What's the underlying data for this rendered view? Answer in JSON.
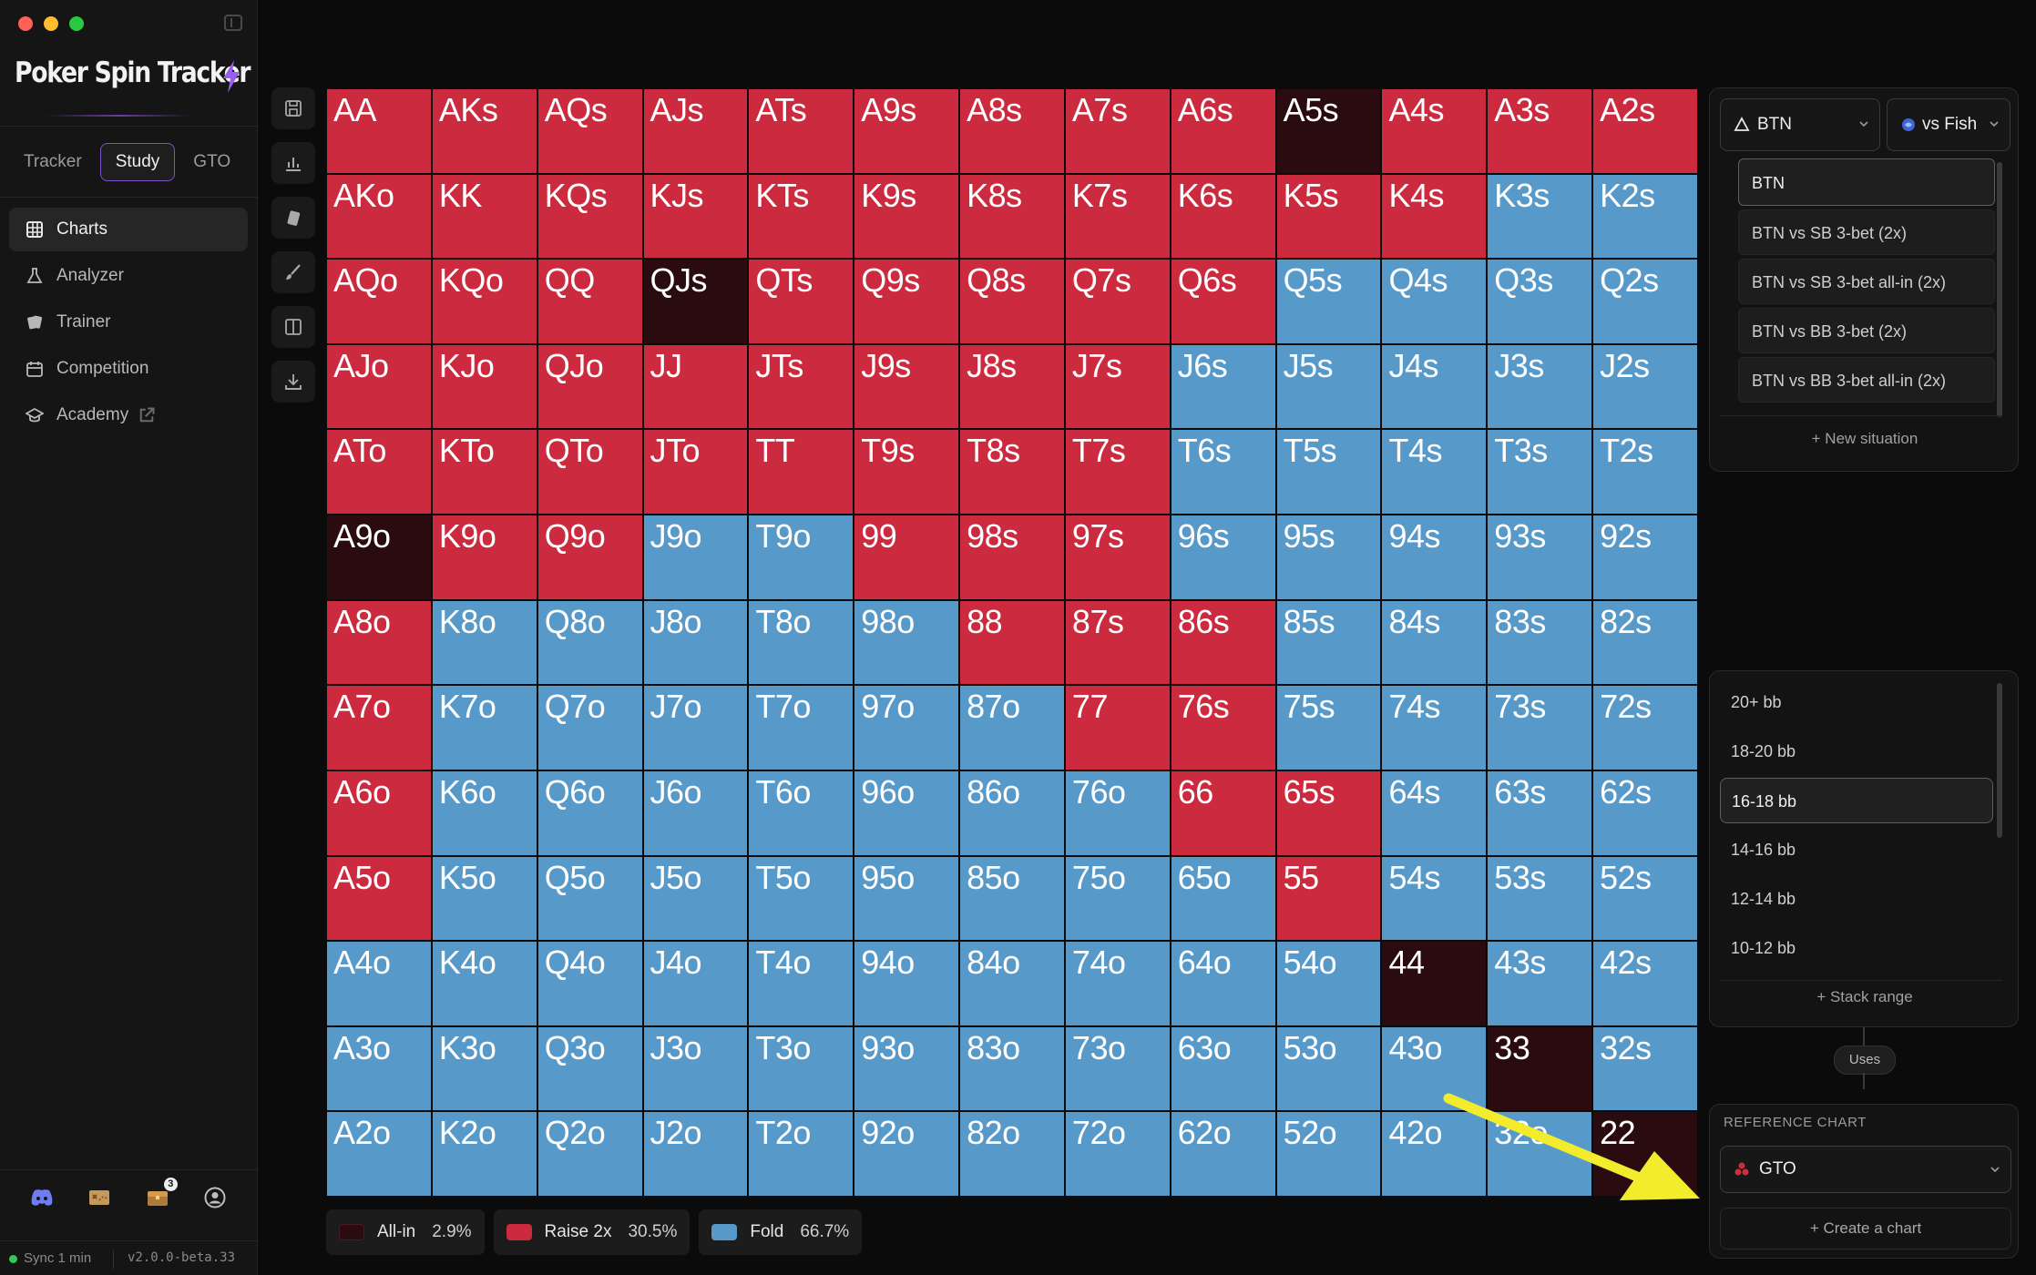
{
  "window": {
    "brand": "Poker Spin Tracker"
  },
  "modes": [
    "Tracker",
    "Study",
    "GTO"
  ],
  "active_mode": "Study",
  "nav": [
    {
      "label": "Charts",
      "icon": "charts-icon",
      "active": true
    },
    {
      "label": "Analyzer",
      "icon": "flask-icon"
    },
    {
      "label": "Trainer",
      "icon": "cards-icon"
    },
    {
      "label": "Competition",
      "icon": "calendar-icon"
    },
    {
      "label": "Academy",
      "icon": "graduation-cap-icon",
      "external": true
    }
  ],
  "bottom_icons": [
    "discord-icon",
    "treasure-map-icon",
    "inbox-icon",
    "account-icon"
  ],
  "notification_count": "3",
  "status": {
    "sync": "Sync 1 min",
    "version": "v2.0.0-beta.33"
  },
  "tools": [
    "save-icon",
    "bar-chart-icon",
    "card-icon",
    "brush-icon",
    "split-view-icon",
    "download-icon"
  ],
  "grid": {
    "rows": [
      [
        "AA",
        "AKs",
        "AQs",
        "AJs",
        "ATs",
        "A9s",
        "A8s",
        "A7s",
        "A6s",
        "A5s",
        "A4s",
        "A3s",
        "A2s"
      ],
      [
        "AKo",
        "KK",
        "KQs",
        "KJs",
        "KTs",
        "K9s",
        "K8s",
        "K7s",
        "K6s",
        "K5s",
        "K4s",
        "K3s",
        "K2s"
      ],
      [
        "AQo",
        "KQo",
        "QQ",
        "QJs",
        "QTs",
        "Q9s",
        "Q8s",
        "Q7s",
        "Q6s",
        "Q5s",
        "Q4s",
        "Q3s",
        "Q2s"
      ],
      [
        "AJo",
        "KJo",
        "QJo",
        "JJ",
        "JTs",
        "J9s",
        "J8s",
        "J7s",
        "J6s",
        "J5s",
        "J4s",
        "J3s",
        "J2s"
      ],
      [
        "ATo",
        "KTo",
        "QTo",
        "JTo",
        "TT",
        "T9s",
        "T8s",
        "T7s",
        "T6s",
        "T5s",
        "T4s",
        "T3s",
        "T2s"
      ],
      [
        "A9o",
        "K9o",
        "Q9o",
        "J9o",
        "T9o",
        "99",
        "98s",
        "97s",
        "96s",
        "95s",
        "94s",
        "93s",
        "92s"
      ],
      [
        "A8o",
        "K8o",
        "Q8o",
        "J8o",
        "T8o",
        "98o",
        "88",
        "87s",
        "86s",
        "85s",
        "84s",
        "83s",
        "82s"
      ],
      [
        "A7o",
        "K7o",
        "Q7o",
        "J7o",
        "T7o",
        "97o",
        "87o",
        "77",
        "76s",
        "75s",
        "74s",
        "73s",
        "72s"
      ],
      [
        "A6o",
        "K6o",
        "Q6o",
        "J6o",
        "T6o",
        "96o",
        "86o",
        "76o",
        "66",
        "65s",
        "64s",
        "63s",
        "62s"
      ],
      [
        "A5o",
        "K5o",
        "Q5o",
        "J5o",
        "T5o",
        "95o",
        "85o",
        "75o",
        "65o",
        "55",
        "54s",
        "53s",
        "52s"
      ],
      [
        "A4o",
        "K4o",
        "Q4o",
        "J4o",
        "T4o",
        "94o",
        "84o",
        "74o",
        "64o",
        "54o",
        "44",
        "43s",
        "42s"
      ],
      [
        "A3o",
        "K3o",
        "Q3o",
        "J3o",
        "T3o",
        "93o",
        "83o",
        "73o",
        "63o",
        "53o",
        "43o",
        "33",
        "32s"
      ],
      [
        "A2o",
        "K2o",
        "Q2o",
        "J2o",
        "T2o",
        "92o",
        "82o",
        "72o",
        "62o",
        "52o",
        "42o",
        "32o",
        "22"
      ]
    ],
    "actions": [
      "RRRRRRRRRARRR",
      "RRRRRRRRRRRFF",
      "RRRARRRRRFFFF",
      "RRRRRRRRFFFFF",
      "RRRRRRRRFFFFF",
      "ARRFFRRRFFFFF",
      "RFFFFFRRRFFFF",
      "RFFFFFFRRFFFF",
      "RFFFFFFFRRFFF",
      "RFFFFFFFFRFFF",
      "FFFFFFFFFFAFF",
      "FFFFFFFFFFFAF",
      "FFFFFFFFFFFFA"
    ],
    "colors": {
      "R": "#cc2a3e",
      "F": "#5799c9",
      "A": "#2a0c10"
    }
  },
  "legend": [
    {
      "label": "All-in",
      "pct": "2.9%",
      "color": "#2a0c10"
    },
    {
      "label": "Raise 2x",
      "pct": "30.5%",
      "color": "#cc2a3e"
    },
    {
      "label": "Fold",
      "pct": "66.7%",
      "color": "#5799c9"
    }
  ],
  "situation": {
    "position": "BTN",
    "opponent": "vs Fish",
    "items": [
      "BTN",
      "BTN vs SB 3-bet (2x)",
      "BTN vs SB 3-bet all-in (2x)",
      "BTN vs BB 3-bet (2x)",
      "BTN vs BB 3-bet all-in (2x)"
    ],
    "active": "BTN",
    "new_label": "+ New situation"
  },
  "stack": {
    "items": [
      "20+ bb",
      "18-20 bb",
      "16-18 bb",
      "14-16 bb",
      "12-14 bb",
      "10-12 bb"
    ],
    "active": "16-18 bb",
    "add_label": "+ Stack range"
  },
  "uses_label": "Uses",
  "reference": {
    "label": "REFERENCE CHART",
    "value": "GTO",
    "create_label": "+ Create a chart"
  }
}
